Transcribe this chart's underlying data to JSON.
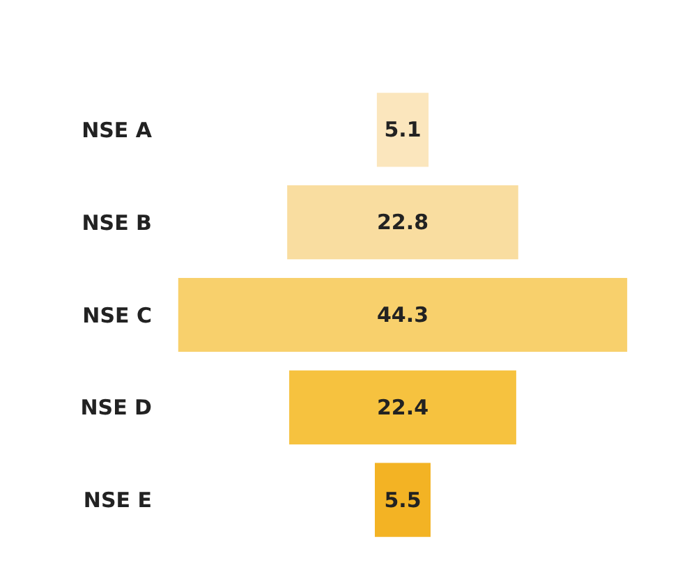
{
  "chart_data": {
    "type": "other",
    "categories": [
      "NSE A",
      "NSE B",
      "NSE C",
      "NSE D",
      "NSE E"
    ],
    "values": [
      5.1,
      22.8,
      44.3,
      22.4,
      5.5
    ],
    "colors": [
      "#fbe6bd",
      "#f9dda0",
      "#f8d06c",
      "#f6c23f",
      "#f3b324"
    ],
    "data_labels": true
  }
}
